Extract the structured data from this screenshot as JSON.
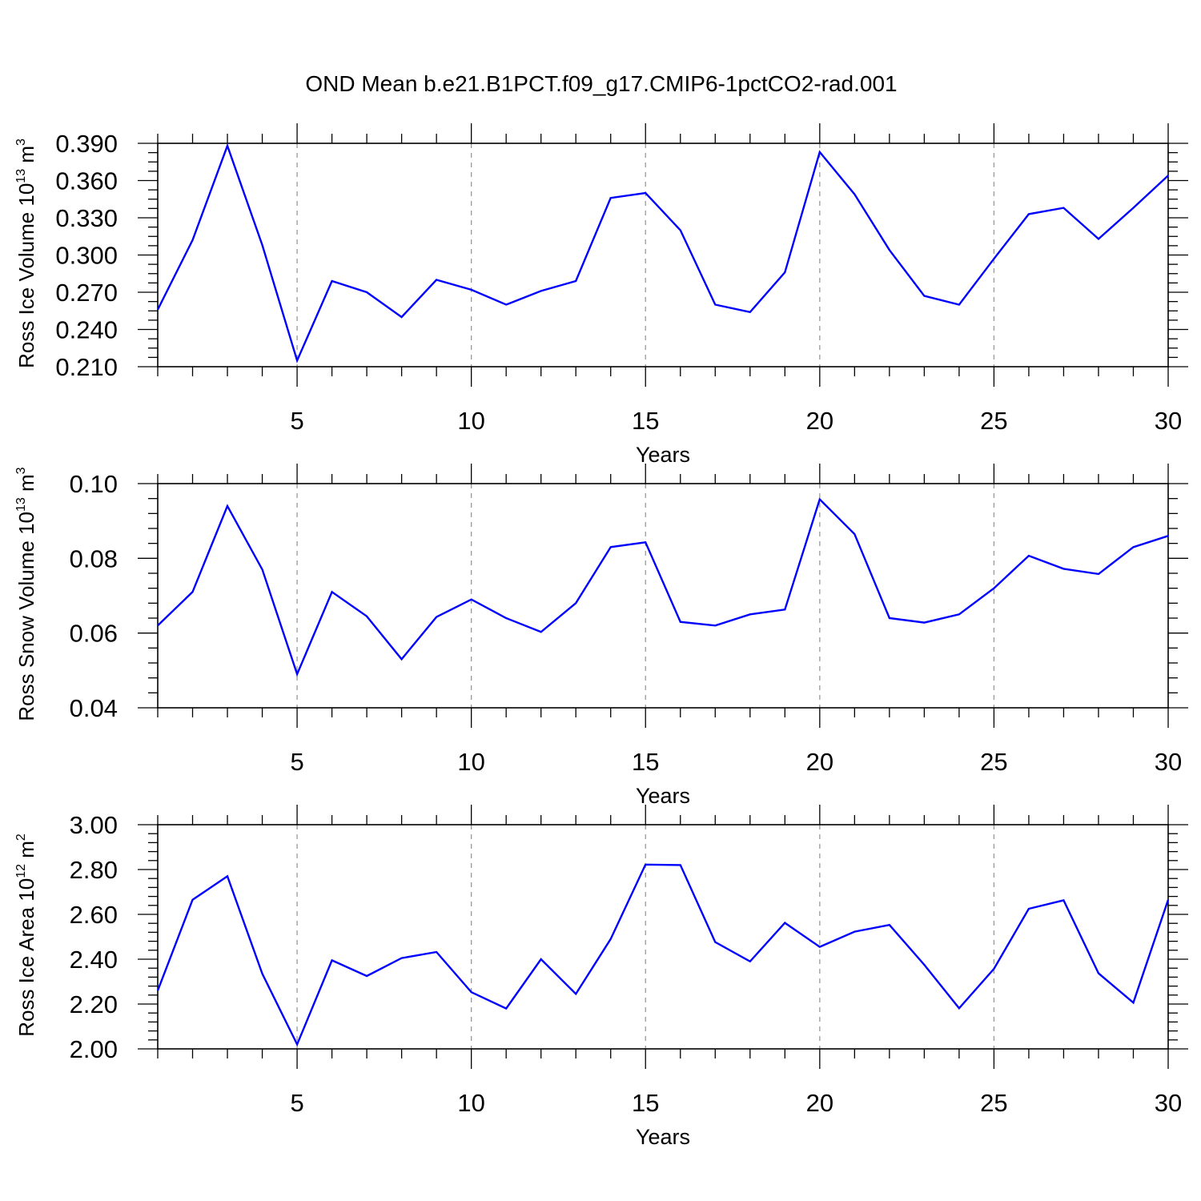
{
  "title": "OND Mean b.e21.B1PCT.f09_g17.CMIP6-1pctCO2-rad.001",
  "colors": {
    "line": "#0000ff",
    "axis": "#000000",
    "grid": "#9a9a9a"
  },
  "chart_data": [
    {
      "type": "line",
      "ylabel": {
        "text": "Ross Ice Volume 10",
        "exp": "13",
        "unit_text": " m",
        "unit_exp": "3"
      },
      "xlabel": "Years",
      "xlim": [
        1,
        30
      ],
      "ylim": [
        0.21,
        0.39
      ],
      "yticks": [
        "0.210",
        "0.240",
        "0.270",
        "0.300",
        "0.330",
        "0.360",
        "0.390"
      ],
      "xticks": [
        "5",
        "10",
        "15",
        "20",
        "25",
        "30"
      ],
      "x": [
        1,
        2,
        3,
        4,
        5,
        6,
        7,
        8,
        9,
        10,
        11,
        12,
        13,
        14,
        15,
        16,
        17,
        18,
        19,
        20,
        21,
        22,
        23,
        24,
        25,
        26,
        27,
        28,
        29,
        30
      ],
      "series": [
        {
          "values": [
            0.256,
            0.312,
            0.388,
            0.308,
            0.215,
            0.279,
            0.27,
            0.25,
            0.28,
            0.272,
            0.26,
            0.271,
            0.279,
            0.346,
            0.35,
            0.32,
            0.26,
            0.254,
            0.286,
            0.383,
            0.349,
            0.304,
            0.267,
            0.26,
            0.297,
            0.333,
            0.338,
            0.313,
            0.338,
            0.364
          ]
        }
      ]
    },
    {
      "type": "line",
      "ylabel": {
        "text": "Ross Snow Volume 10",
        "exp": "13",
        "unit_text": " m",
        "unit_exp": "3"
      },
      "xlabel": "Years",
      "xlim": [
        1,
        30
      ],
      "ylim": [
        0.04,
        0.1
      ],
      "yticks": [
        "0.04",
        "0.06",
        "0.08",
        "0.10"
      ],
      "xticks": [
        "5",
        "10",
        "15",
        "20",
        "25",
        "30"
      ],
      "x": [
        1,
        2,
        3,
        4,
        5,
        6,
        7,
        8,
        9,
        10,
        11,
        12,
        13,
        14,
        15,
        16,
        17,
        18,
        19,
        20,
        21,
        22,
        23,
        24,
        25,
        26,
        27,
        28,
        29,
        30
      ],
      "series": [
        {
          "values": [
            0.062,
            0.071,
            0.094,
            0.077,
            0.049,
            0.071,
            0.0645,
            0.053,
            0.0643,
            0.069,
            0.064,
            0.0603,
            0.068,
            0.083,
            0.0843,
            0.063,
            0.062,
            0.065,
            0.0663,
            0.0958,
            0.0865,
            0.064,
            0.0628,
            0.065,
            0.072,
            0.0807,
            0.0772,
            0.0758,
            0.083,
            0.086
          ]
        }
      ]
    },
    {
      "type": "line",
      "ylabel": {
        "text": "Ross Ice Area 10",
        "exp": "12",
        "unit_text": " m",
        "unit_exp": "2"
      },
      "xlabel": "Years",
      "xlim": [
        1,
        30
      ],
      "ylim": [
        2.0,
        3.0
      ],
      "yticks": [
        "2.00",
        "2.20",
        "2.40",
        "2.60",
        "2.80",
        "3.00"
      ],
      "xticks": [
        "5",
        "10",
        "15",
        "20",
        "25",
        "30"
      ],
      "x": [
        1,
        2,
        3,
        4,
        5,
        6,
        7,
        8,
        9,
        10,
        11,
        12,
        13,
        14,
        15,
        16,
        17,
        18,
        19,
        20,
        21,
        22,
        23,
        24,
        25,
        26,
        27,
        28,
        29,
        30
      ],
      "series": [
        {
          "values": [
            2.26,
            2.665,
            2.77,
            2.335,
            2.02,
            2.395,
            2.325,
            2.405,
            2.432,
            2.253,
            2.18,
            2.4,
            2.245,
            2.49,
            2.822,
            2.82,
            2.476,
            2.39,
            2.562,
            2.455,
            2.523,
            2.553,
            2.375,
            2.181,
            2.357,
            2.625,
            2.663,
            2.337,
            2.206,
            2.665
          ]
        }
      ]
    }
  ]
}
